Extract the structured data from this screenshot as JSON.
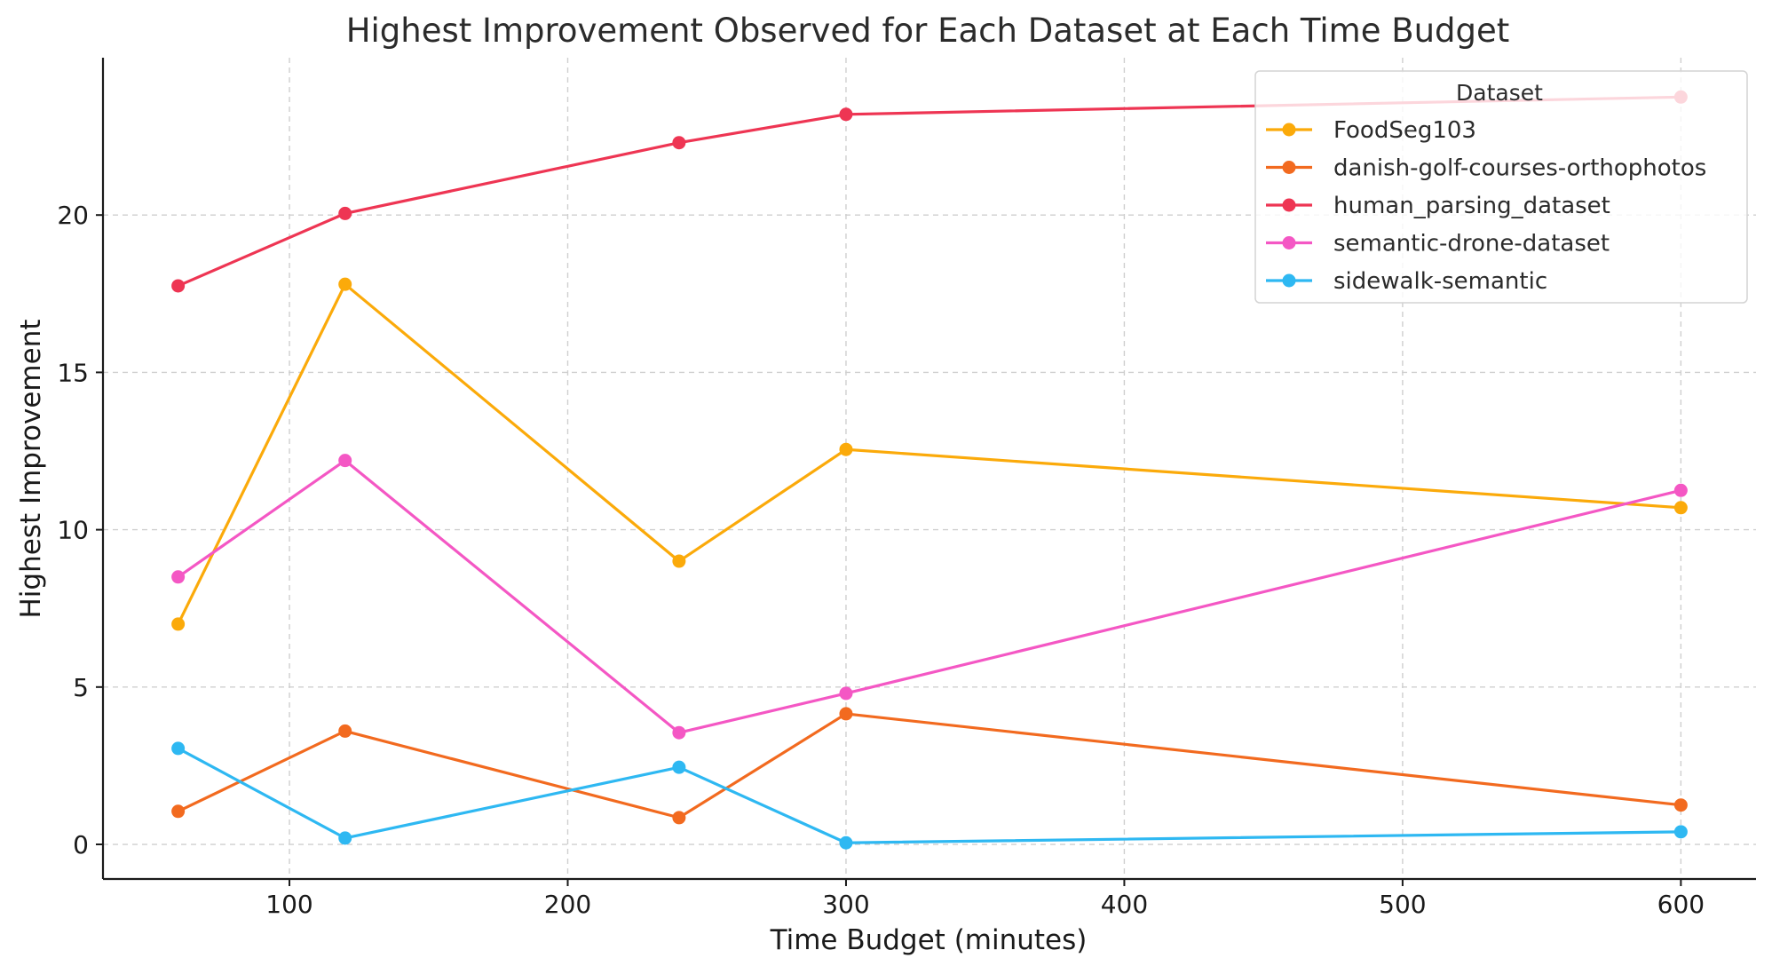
{
  "chart_data": {
    "type": "line",
    "title": "Highest Improvement Observed for Each Dataset at Each Time Budget",
    "xlabel": "Time Budget (minutes)",
    "ylabel": "Highest Improvement",
    "xlim": [
      33,
      627
    ],
    "ylim": [
      -1.1,
      25
    ],
    "xticks": [
      100,
      200,
      300,
      400,
      500,
      600
    ],
    "yticks": [
      0,
      5,
      10,
      15,
      20
    ],
    "grid": true,
    "legend": {
      "title": "Dataset",
      "position": "top-right"
    },
    "x": [
      60,
      120,
      240,
      300,
      600
    ],
    "series": [
      {
        "name": "FoodSeg103",
        "color": "#FBAA0A",
        "values": [
          7.0,
          17.8,
          9.0,
          12.55,
          10.7
        ]
      },
      {
        "name": "danish-golf-courses-orthophotos",
        "color": "#F26A1F",
        "values": [
          1.05,
          3.6,
          0.85,
          4.15,
          1.25
        ]
      },
      {
        "name": "human_parsing_dataset",
        "color": "#EE3553",
        "values": [
          17.75,
          20.05,
          22.3,
          23.2,
          23.75
        ]
      },
      {
        "name": "semantic-drone-dataset",
        "color": "#F457C4",
        "values": [
          8.5,
          12.2,
          3.55,
          4.8,
          11.25
        ]
      },
      {
        "name": "sidewalk-semantic",
        "color": "#2EB8F2",
        "values": [
          3.05,
          0.2,
          2.45,
          0.05,
          0.4
        ]
      }
    ]
  }
}
